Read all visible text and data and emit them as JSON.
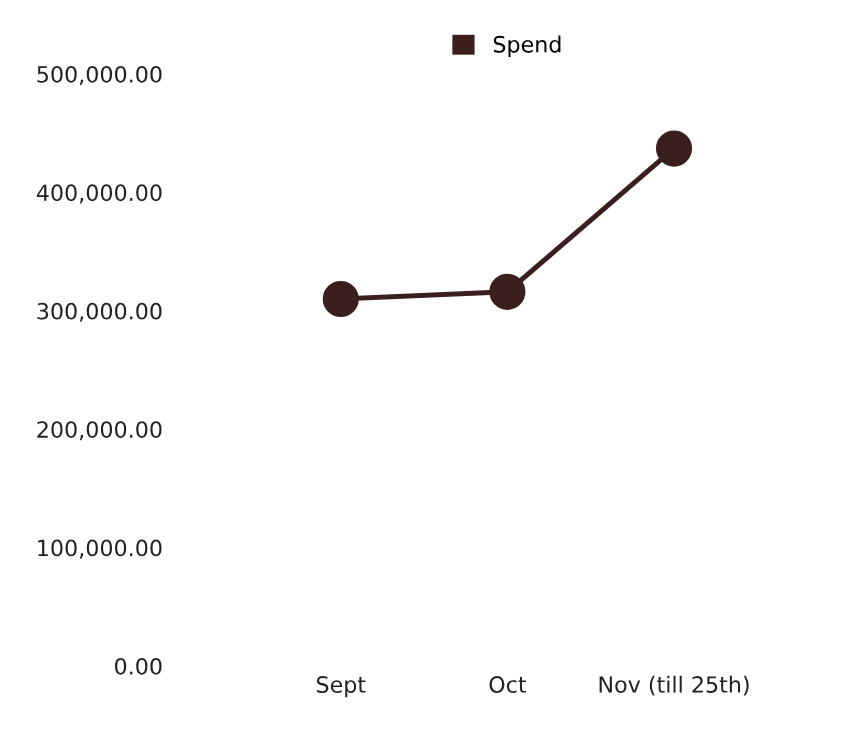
{
  "chart_data": {
    "type": "line",
    "categories": [
      "Sept",
      "Oct",
      "Nov (till 25th)"
    ],
    "series": [
      {
        "name": "Spend",
        "color": "#3b1f1f",
        "values": [
          310000,
          316000,
          437000
        ]
      }
    ],
    "ylim": [
      0,
      500000
    ],
    "yticks": [
      {
        "value": 0,
        "label": "0.00"
      },
      {
        "value": 100000,
        "label": "100,000.00"
      },
      {
        "value": 200000,
        "label": "200,000.00"
      },
      {
        "value": 300000,
        "label": "300,000.00"
      },
      {
        "value": 400000,
        "label": "400,000.00"
      },
      {
        "value": 500000,
        "label": "500,000.00"
      }
    ],
    "marker": "circle",
    "line_style": "solid",
    "legend": "top",
    "grid": false
  }
}
